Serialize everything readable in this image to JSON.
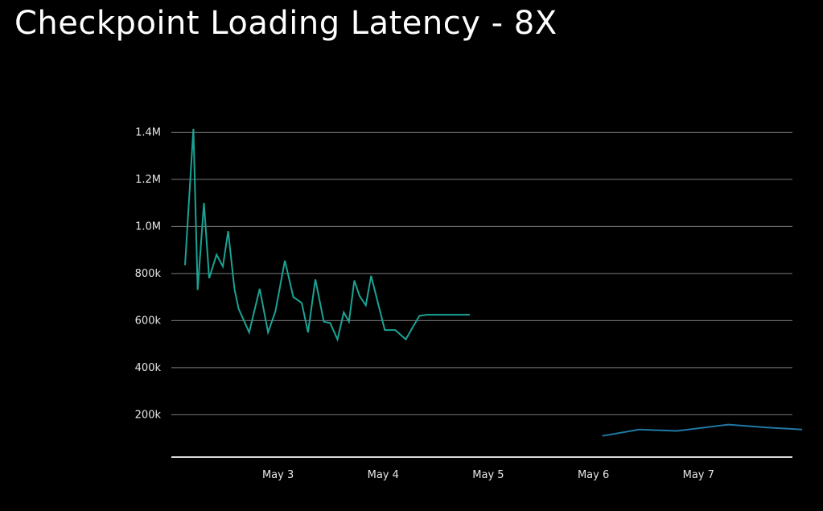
{
  "chart_data": {
    "type": "line",
    "title": "Checkpoint Loading Latency - 8X",
    "xlabel": "",
    "ylabel": "",
    "grid": true,
    "y_ticks": [
      {
        "value": 200000,
        "label": "200k"
      },
      {
        "value": 400000,
        "label": "400k"
      },
      {
        "value": 600000,
        "label": "600k"
      },
      {
        "value": 800000,
        "label": "800k"
      },
      {
        "value": 1000000,
        "label": "1.0M"
      },
      {
        "value": 1200000,
        "label": "1.2M"
      },
      {
        "value": 1400000,
        "label": "1.4M"
      }
    ],
    "x_ticks": [
      {
        "value": 3,
        "label": "May 3"
      },
      {
        "value": 4,
        "label": "May 4"
      },
      {
        "value": 5,
        "label": "May 5"
      },
      {
        "value": 6,
        "label": "May 6"
      },
      {
        "value": 7,
        "label": "May 7"
      }
    ],
    "xlim": [
      1.97,
      7.97
    ],
    "ylim": [
      20000,
      1415000
    ],
    "series": [
      {
        "color": "#1aa394",
        "x": [
          2.1,
          2.18,
          2.22,
          2.28,
          2.33,
          2.4,
          2.46,
          2.51,
          2.57,
          2.61,
          2.71,
          2.81,
          2.89,
          2.96,
          3.05,
          3.13,
          3.21,
          3.27,
          3.34,
          3.42,
          3.48,
          3.55,
          3.61,
          3.66,
          3.71,
          3.76,
          3.82,
          3.87,
          4.0,
          4.1,
          4.2,
          4.27,
          4.33,
          4.4,
          4.51,
          4.58,
          4.69,
          4.75,
          4.81
        ],
        "y": [
          835000,
          1415000,
          730000,
          1100000,
          780000,
          880000,
          830000,
          980000,
          735000,
          650000,
          550000,
          735000,
          550000,
          640000,
          855000,
          700000,
          675000,
          550000,
          775000,
          595000,
          590000,
          520000,
          635000,
          595000,
          770000,
          705000,
          665000,
          790000,
          560000,
          560000,
          520000,
          575000,
          620000,
          625000,
          625000,
          625000,
          625000,
          625000,
          625000
        ]
      },
      {
        "color": "#1f78a4",
        "x": [
          6.07,
          6.42,
          6.78,
          7.27,
          7.62,
          7.97
        ],
        "y": [
          110000,
          137000,
          131000,
          158000,
          146000,
          137000
        ]
      }
    ]
  }
}
